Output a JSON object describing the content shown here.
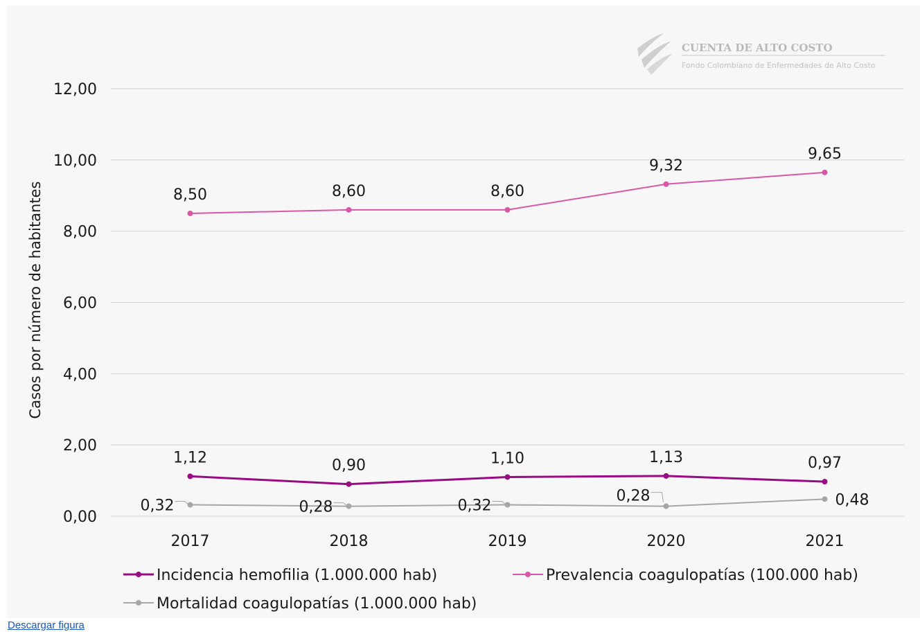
{
  "chart_data": {
    "type": "line",
    "title": "",
    "xlabel": "",
    "ylabel": "Casos por número de habitantes",
    "ylim": [
      0,
      12
    ],
    "yticks": [
      0,
      2,
      4,
      6,
      8,
      10,
      12
    ],
    "ytick_labels": [
      "0,00",
      "2,00",
      "4,00",
      "6,00",
      "8,00",
      "10,00",
      "12,00"
    ],
    "categories": [
      "2017",
      "2018",
      "2019",
      "2020",
      "2021"
    ],
    "grid": true,
    "legend_position": "bottom",
    "series": [
      {
        "name": "Incidencia hemofilia (1.000.000 hab)",
        "color": "#990a85",
        "values": [
          1.12,
          0.9,
          1.1,
          1.13,
          0.97
        ],
        "labels": [
          "1,12",
          "0,90",
          "1,10",
          "1,13",
          "0,97"
        ]
      },
      {
        "name": "Prevalencia coagulopatías (100.000 hab)",
        "color": "#d957a6",
        "values": [
          8.5,
          8.6,
          8.6,
          9.32,
          9.65
        ],
        "labels": [
          "8,50",
          "8,60",
          "8,60",
          "9,32",
          "9,65"
        ]
      },
      {
        "name": "Mortalidad coagulopatías (1.000.000 hab)",
        "color": "#a6a6a6",
        "values": [
          0.32,
          0.28,
          0.32,
          0.28,
          0.48
        ],
        "labels": [
          "0,32",
          "0,28",
          "0,32",
          "0,28",
          "0,48"
        ]
      }
    ]
  },
  "logo": {
    "title": "CUENTA DE ALTO COSTO",
    "subtitle": "Fondo Colombiano de Enfermedades de Alto Costo"
  },
  "download_link": "Descargar figura"
}
